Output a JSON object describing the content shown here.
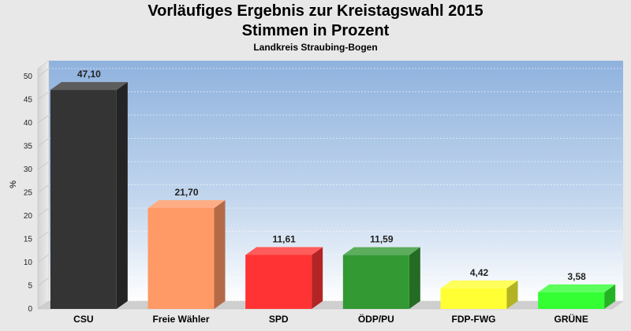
{
  "header": {
    "title_line1": "Vorläufiges Ergebnis zur Kreistagswahl 2015",
    "title_line2": "Stimmen in Prozent",
    "subtitle": "Landkreis Straubing-Bogen"
  },
  "chart_data": {
    "type": "bar",
    "title": "Vorläufiges Ergebnis zur Kreistagswahl 2015 / Stimmen in Prozent",
    "subtitle": "Landkreis Straubing-Bogen",
    "xlabel": "",
    "ylabel": "%",
    "ylim": [
      0,
      50
    ],
    "yticks": [
      0,
      5,
      10,
      15,
      20,
      25,
      30,
      35,
      40,
      45,
      50
    ],
    "grid": true,
    "categories": [
      "CSU",
      "Freie Wähler",
      "SPD",
      "ÖDP/PU",
      "FDP-FWG",
      "GRÜNE"
    ],
    "values": [
      47.1,
      21.7,
      11.61,
      11.59,
      4.42,
      3.58
    ],
    "value_labels": [
      "47,10",
      "21,70",
      "11,61",
      "11,59",
      "4,42",
      "3,58"
    ],
    "colors": [
      "#343434",
      "#ff9966",
      "#ff3333",
      "#339933",
      "#ffff33",
      "#33ff33"
    ],
    "style": "3d"
  }
}
